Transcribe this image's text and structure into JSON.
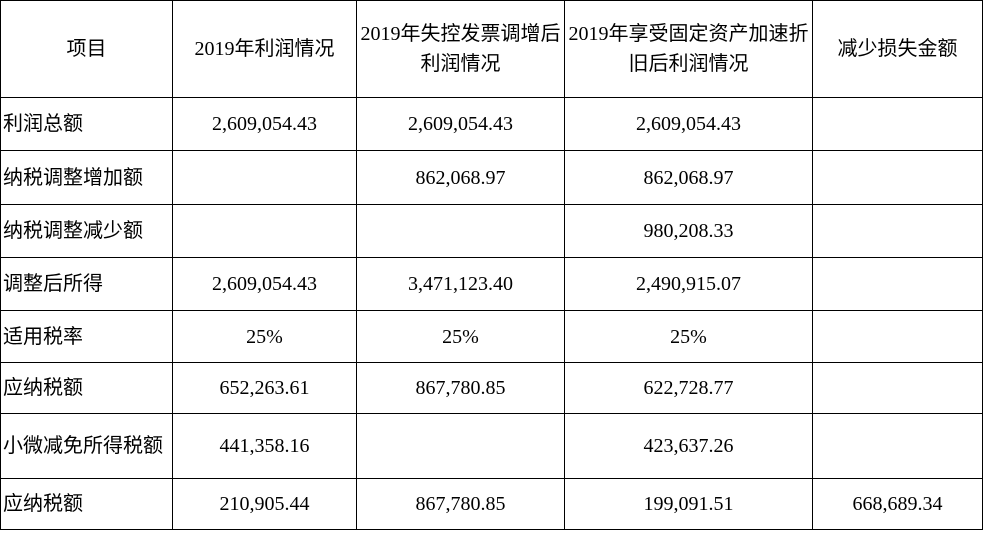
{
  "table": {
    "header": [
      "项目",
      "2019年利润情况",
      "2019年失控发票调增后利润情况",
      "2019年享受固定资产加速折旧后利润情况",
      "减少损失金额"
    ],
    "rows": [
      [
        "利润总额",
        "2,609,054.43",
        "2,609,054.43",
        "2,609,054.43",
        null
      ],
      [
        "纳税调整增加额",
        null,
        "862,068.97",
        "862,068.97",
        null
      ],
      [
        "纳税调整减少额",
        null,
        null,
        "980,208.33",
        null
      ],
      [
        "调整后所得",
        "2,609,054.43",
        "3,471,123.40",
        "2,490,915.07",
        null
      ],
      [
        "适用税率",
        "25%",
        "25%",
        "25%",
        null
      ],
      [
        "应纳税额",
        "652,263.61",
        "867,780.85",
        "622,728.77",
        null
      ],
      [
        "小微减免所得税额",
        "441,358.16",
        null,
        "423,637.26",
        null
      ],
      [
        "应纳税额",
        "210,905.44",
        "867,780.85",
        "199,091.51",
        "668,689.34"
      ]
    ]
  }
}
